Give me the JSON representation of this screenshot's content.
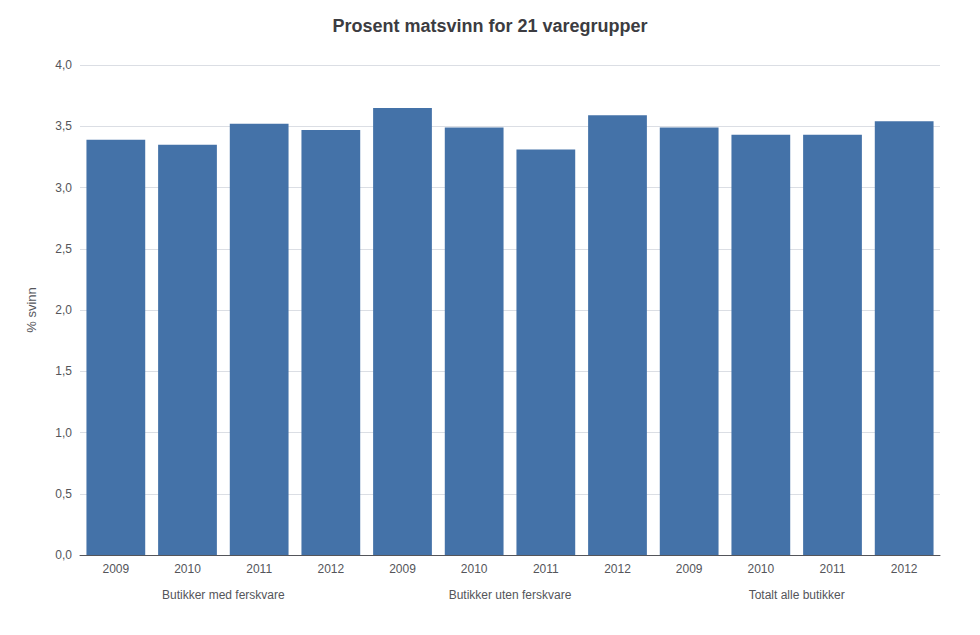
{
  "chart_data": {
    "type": "bar",
    "title": "Prosent matsvinn for 21 varegrupper",
    "ylabel": "% svinn",
    "categories": [
      "2009",
      "2010",
      "2011",
      "2012",
      "2009",
      "2010",
      "2011",
      "2012",
      "2009",
      "2010",
      "2011",
      "2012"
    ],
    "values": [
      3.39,
      3.35,
      3.52,
      3.47,
      3.65,
      3.49,
      3.31,
      3.59,
      3.49,
      3.43,
      3.43,
      3.54
    ],
    "annotations": [
      "Butikker med ferskvare",
      "Butikker uten ferskvare",
      "Totalt alle butikker"
    ],
    "color": "#4472A8",
    "ylim": [
      0,
      4.0
    ],
    "yticks": [
      {
        "value": 0.0,
        "label": "0,0"
      },
      {
        "value": 0.5,
        "label": "0,5"
      },
      {
        "value": 1.0,
        "label": "1,0"
      },
      {
        "value": 1.5,
        "label": "1,5"
      },
      {
        "value": 2.0,
        "label": "2,0"
      },
      {
        "value": 2.5,
        "label": "2,5"
      },
      {
        "value": 3.0,
        "label": "3,0"
      },
      {
        "value": 3.5,
        "label": "3,5"
      },
      {
        "value": 4.0,
        "label": "4,0"
      }
    ],
    "grid": true
  }
}
